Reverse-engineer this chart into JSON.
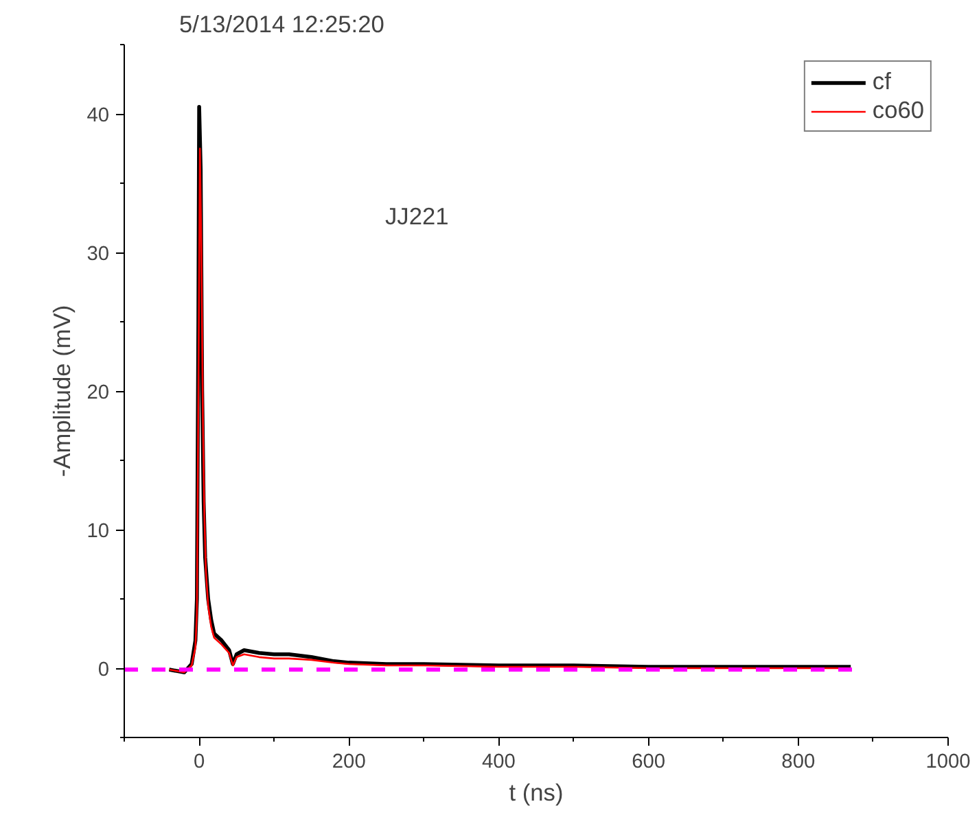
{
  "chart_data": {
    "type": "line",
    "title": "5/13/2014 12:25:20",
    "xlabel": "t (ns)",
    "ylabel": "-Amplitude (mV)",
    "annotations": [
      "JJ221"
    ],
    "xlim": [
      -100,
      1000
    ],
    "xticks": [
      0,
      200,
      400,
      600,
      800,
      1000
    ],
    "ylim": [
      -5,
      45
    ],
    "yticks": [
      0,
      10,
      20,
      30,
      40
    ],
    "grid": false,
    "legend": "top right",
    "series": [
      {
        "name": "cf",
        "color": "#000000",
        "x": [
          -40,
          -20,
          -10,
          -5,
          -3,
          -1,
          0,
          2,
          4,
          6,
          8,
          12,
          16,
          20,
          30,
          40,
          45,
          50,
          60,
          80,
          100,
          120,
          150,
          180,
          200,
          250,
          300,
          400,
          500,
          600,
          700,
          800,
          870
        ],
        "values": [
          -0.1,
          -0.3,
          0.3,
          2,
          5,
          25,
          40.5,
          36,
          20,
          12,
          8,
          5,
          3.5,
          2.5,
          2,
          1.3,
          0.3,
          1,
          1.3,
          1.1,
          1,
          1,
          0.8,
          0.5,
          0.4,
          0.3,
          0.3,
          0.2,
          0.2,
          0.1,
          0.1,
          0.1,
          0.1
        ]
      },
      {
        "name": "co60",
        "color": "#ff0000",
        "x": [
          -40,
          -20,
          -10,
          -5,
          -3,
          -1,
          1,
          3,
          5,
          7,
          9,
          12,
          16,
          20,
          30,
          40,
          45,
          50,
          60,
          80,
          100,
          120,
          150,
          180,
          200,
          250,
          300,
          400,
          500,
          600,
          700,
          800,
          870
        ],
        "values": [
          -0.1,
          -0.3,
          0.2,
          1.5,
          4,
          20,
          37.5,
          30,
          18,
          11,
          7,
          4.5,
          3,
          2.2,
          1.7,
          1.1,
          0.2,
          0.8,
          1,
          0.8,
          0.7,
          0.7,
          0.6,
          0.4,
          0.3,
          0.2,
          0.2,
          0.1,
          0.1,
          0,
          0,
          0,
          0
        ]
      },
      {
        "color": "#ff00ff",
        "line_style": "dashed",
        "x": [
          -100,
          875
        ],
        "values": [
          -0.1,
          -0.1
        ]
      }
    ]
  }
}
